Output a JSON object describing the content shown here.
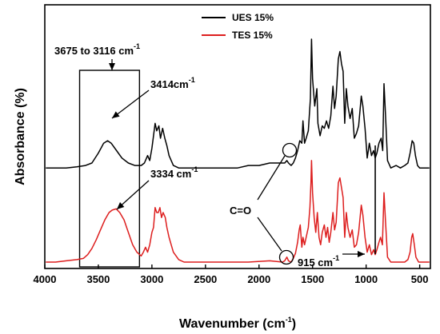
{
  "chart_data": {
    "type": "line",
    "xlabel": {
      "main": "Wavenumber (cm",
      "sup": "-1",
      "tail": ")"
    },
    "ylabel": "Absorbance (%)",
    "xlim": [
      4000,
      400
    ],
    "x_reversed": true,
    "y_ticks_shown": false,
    "grid": false,
    "legend_position": "top-right",
    "xticks": [
      4000,
      3500,
      3000,
      2500,
      2000,
      1500,
      1000,
      500
    ],
    "xtick_labels": [
      "4000",
      "3500",
      "3000",
      "2500",
      "2000",
      "1500",
      "1000",
      "500"
    ],
    "series": [
      {
        "name": "UES 15%",
        "color": "#000000",
        "points": [
          [
            3990,
            0.62
          ],
          [
            3800,
            0.62
          ],
          [
            3700,
            0.615
          ],
          [
            3620,
            0.61
          ],
          [
            3560,
            0.6
          ],
          [
            3500,
            0.56
          ],
          [
            3450,
            0.52
          ],
          [
            3414,
            0.51
          ],
          [
            3380,
            0.52
          ],
          [
            3330,
            0.55
          ],
          [
            3280,
            0.58
          ],
          [
            3220,
            0.6
          ],
          [
            3160,
            0.61
          ],
          [
            3100,
            0.61
          ],
          [
            3070,
            0.6
          ],
          [
            3040,
            0.57
          ],
          [
            3020,
            0.59
          ],
          [
            3000,
            0.54
          ],
          [
            2970,
            0.44
          ],
          [
            2955,
            0.47
          ],
          [
            2935,
            0.45
          ],
          [
            2920,
            0.5
          ],
          [
            2900,
            0.46
          ],
          [
            2880,
            0.5
          ],
          [
            2860,
            0.53
          ],
          [
            2840,
            0.57
          ],
          [
            2800,
            0.61
          ],
          [
            2750,
            0.62
          ],
          [
            2500,
            0.62
          ],
          [
            2200,
            0.62
          ],
          [
            2100,
            0.61
          ],
          [
            2000,
            0.61
          ],
          [
            1900,
            0.6
          ],
          [
            1800,
            0.6
          ],
          [
            1760,
            0.6
          ],
          [
            1740,
            0.59
          ],
          [
            1725,
            0.6
          ],
          [
            1700,
            0.61
          ],
          [
            1680,
            0.6
          ],
          [
            1660,
            0.58
          ],
          [
            1640,
            0.55
          ],
          [
            1620,
            0.51
          ],
          [
            1600,
            0.52
          ],
          [
            1590,
            0.43
          ],
          [
            1575,
            0.52
          ],
          [
            1560,
            0.5
          ],
          [
            1540,
            0.47
          ],
          [
            1520,
            0.34
          ],
          [
            1510,
            0.1
          ],
          [
            1500,
            0.26
          ],
          [
            1480,
            0.37
          ],
          [
            1460,
            0.3
          ],
          [
            1450,
            0.44
          ],
          [
            1430,
            0.49
          ],
          [
            1410,
            0.45
          ],
          [
            1390,
            0.46
          ],
          [
            1370,
            0.43
          ],
          [
            1350,
            0.46
          ],
          [
            1330,
            0.41
          ],
          [
            1310,
            0.29
          ],
          [
            1295,
            0.38
          ],
          [
            1280,
            0.33
          ],
          [
            1260,
            0.18
          ],
          [
            1245,
            0.15
          ],
          [
            1230,
            0.2
          ],
          [
            1215,
            0.23
          ],
          [
            1200,
            0.44
          ],
          [
            1185,
            0.3
          ],
          [
            1170,
            0.37
          ],
          [
            1150,
            0.42
          ],
          [
            1130,
            0.38
          ],
          [
            1110,
            0.5
          ],
          [
            1090,
            0.48
          ],
          [
            1070,
            0.45
          ],
          [
            1045,
            0.33
          ],
          [
            1030,
            0.37
          ],
          [
            1010,
            0.46
          ],
          [
            990,
            0.58
          ],
          [
            970,
            0.52
          ],
          [
            950,
            0.57
          ],
          [
            930,
            0.55
          ],
          [
            915,
            0.58
          ],
          [
            900,
            0.56
          ],
          [
            880,
            0.52
          ],
          [
            860,
            0.5
          ],
          [
            845,
            0.55
          ],
          [
            833,
            0.28
          ],
          [
            820,
            0.4
          ],
          [
            800,
            0.59
          ],
          [
            770,
            0.62
          ],
          [
            720,
            0.61
          ],
          [
            680,
            0.62
          ],
          [
            640,
            0.61
          ],
          [
            610,
            0.6
          ],
          [
            590,
            0.56
          ],
          [
            570,
            0.51
          ],
          [
            555,
            0.52
          ],
          [
            540,
            0.57
          ],
          [
            520,
            0.61
          ],
          [
            500,
            0.62
          ],
          [
            450,
            0.62
          ],
          [
            410,
            0.62
          ]
        ]
      },
      {
        "name": "TES 15%",
        "color": "#dd1e1e",
        "points": [
          [
            3990,
            1.0
          ],
          [
            3900,
            1.0
          ],
          [
            3800,
            0.995
          ],
          [
            3700,
            0.99
          ],
          [
            3640,
            0.985
          ],
          [
            3600,
            0.97
          ],
          [
            3560,
            0.945
          ],
          [
            3520,
            0.91
          ],
          [
            3480,
            0.87
          ],
          [
            3440,
            0.83
          ],
          [
            3400,
            0.8
          ],
          [
            3370,
            0.79
          ],
          [
            3334,
            0.785
          ],
          [
            3300,
            0.8
          ],
          [
            3260,
            0.83
          ],
          [
            3220,
            0.88
          ],
          [
            3180,
            0.93
          ],
          [
            3140,
            0.96
          ],
          [
            3100,
            0.975
          ],
          [
            3080,
            0.96
          ],
          [
            3060,
            0.94
          ],
          [
            3040,
            0.96
          ],
          [
            3020,
            0.93
          ],
          [
            3000,
            0.88
          ],
          [
            2985,
            0.86
          ],
          [
            2970,
            0.78
          ],
          [
            2955,
            0.8
          ],
          [
            2940,
            0.8
          ],
          [
            2925,
            0.78
          ],
          [
            2910,
            0.82
          ],
          [
            2895,
            0.8
          ],
          [
            2875,
            0.82
          ],
          [
            2860,
            0.86
          ],
          [
            2840,
            0.9
          ],
          [
            2820,
            0.93
          ],
          [
            2800,
            0.96
          ],
          [
            2750,
            0.99
          ],
          [
            2700,
            1.0
          ],
          [
            2400,
            1.0
          ],
          [
            2100,
            1.0
          ],
          [
            1900,
            0.995
          ],
          [
            1780,
            1.0
          ],
          [
            1760,
            0.995
          ],
          [
            1740,
            0.98
          ],
          [
            1725,
            0.995
          ],
          [
            1700,
            1.0
          ],
          [
            1680,
            0.985
          ],
          [
            1660,
            0.965
          ],
          [
            1640,
            0.92
          ],
          [
            1625,
            0.87
          ],
          [
            1615,
            0.85
          ],
          [
            1600,
            0.94
          ],
          [
            1590,
            0.9
          ],
          [
            1575,
            0.93
          ],
          [
            1560,
            0.9
          ],
          [
            1540,
            0.86
          ],
          [
            1525,
            0.78
          ],
          [
            1515,
            0.68
          ],
          [
            1510,
            0.59
          ],
          [
            1500,
            0.72
          ],
          [
            1485,
            0.82
          ],
          [
            1470,
            0.88
          ],
          [
            1455,
            0.8
          ],
          [
            1440,
            0.9
          ],
          [
            1425,
            0.93
          ],
          [
            1410,
            0.88
          ],
          [
            1390,
            0.85
          ],
          [
            1375,
            0.9
          ],
          [
            1360,
            0.86
          ],
          [
            1345,
            0.92
          ],
          [
            1330,
            0.88
          ],
          [
            1310,
            0.8
          ],
          [
            1295,
            0.87
          ],
          [
            1280,
            0.84
          ],
          [
            1260,
            0.68
          ],
          [
            1245,
            0.66
          ],
          [
            1230,
            0.7
          ],
          [
            1215,
            0.74
          ],
          [
            1200,
            0.9
          ],
          [
            1185,
            0.8
          ],
          [
            1170,
            0.86
          ],
          [
            1150,
            0.9
          ],
          [
            1130,
            0.87
          ],
          [
            1110,
            0.94
          ],
          [
            1090,
            0.93
          ],
          [
            1070,
            0.88
          ],
          [
            1045,
            0.77
          ],
          [
            1030,
            0.81
          ],
          [
            1010,
            0.9
          ],
          [
            990,
            0.96
          ],
          [
            970,
            0.93
          ],
          [
            950,
            0.97
          ],
          [
            930,
            0.95
          ],
          [
            915,
            0.97
          ],
          [
            900,
            0.95
          ],
          [
            880,
            0.92
          ],
          [
            865,
            0.9
          ],
          [
            848,
            0.93
          ],
          [
            833,
            0.72
          ],
          [
            820,
            0.83
          ],
          [
            800,
            0.98
          ],
          [
            770,
            1.0
          ],
          [
            700,
            1.0
          ],
          [
            640,
            1.0
          ],
          [
            610,
            0.99
          ],
          [
            590,
            0.96
          ],
          [
            575,
            0.9
          ],
          [
            565,
            0.885
          ],
          [
            550,
            0.93
          ],
          [
            535,
            0.98
          ],
          [
            510,
            1.0
          ],
          [
            450,
            1.0
          ],
          [
            410,
            1.0
          ]
        ]
      }
    ],
    "annotations": {
      "range_label": {
        "main": "3675 to 3116 cm",
        "sup": "-1"
      },
      "range_box": [
        3675,
        3116
      ],
      "peak_ues": {
        "main": "3414cm",
        "sup": "-1"
      },
      "peak_tes": {
        "main": "3334 cm",
        "sup": "-1"
      },
      "carbonyl": "C=O",
      "peak_915": {
        "main": "915 cm",
        "sup": "-1"
      },
      "vertical_marker_x": 915
    }
  }
}
